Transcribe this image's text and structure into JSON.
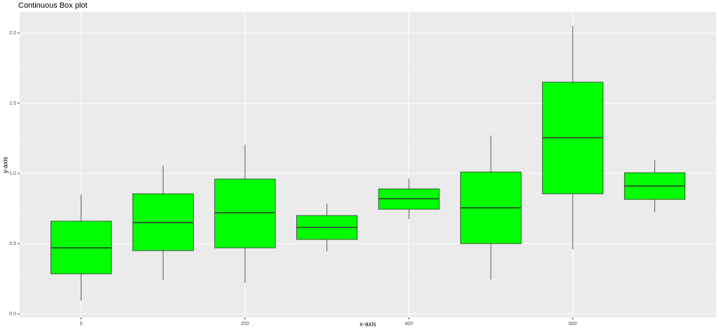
{
  "chart_data": {
    "type": "box",
    "title": "Continuous Box plot",
    "x_label": "x-axis",
    "y_label": "y-axis",
    "x": [
      0,
      100,
      200,
      300,
      400,
      500,
      600,
      700
    ],
    "whisker_low": [
      0.095,
      0.24,
      0.22,
      0.445,
      0.675,
      0.245,
      0.46,
      0.725
    ],
    "q1": [
      0.285,
      0.45,
      0.47,
      0.53,
      0.745,
      0.5,
      0.855,
      0.815
    ],
    "median": [
      0.47,
      0.65,
      0.72,
      0.615,
      0.82,
      0.755,
      1.255,
      0.91
    ],
    "q3": [
      0.66,
      0.855,
      0.96,
      0.7,
      0.89,
      1.01,
      1.65,
      1.005
    ],
    "whisker_high": [
      0.85,
      1.055,
      1.205,
      0.785,
      0.965,
      1.27,
      2.05,
      1.095
    ],
    "color": "#00ff00",
    "edge_color": "#333333",
    "xlim": [
      -75,
      775
    ],
    "ylim": [
      -0.025,
      2.15
    ],
    "xticks": [
      0,
      200,
      400,
      600
    ],
    "yticks": [
      {
        "value": 0,
        "label": "0.0"
      },
      {
        "value": 0.5,
        "label": "0.5"
      },
      {
        "value": 1,
        "label": "1.0"
      },
      {
        "value": 1.5,
        "label": "1.5"
      },
      {
        "value": 2,
        "label": "2.0"
      }
    ],
    "grid": true,
    "minor_grid": true
  }
}
